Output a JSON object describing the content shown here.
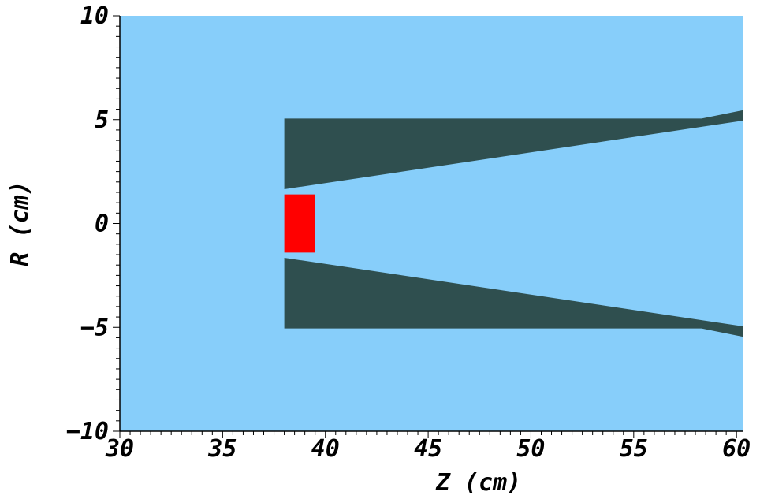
{
  "chart_data": {
    "type": "area",
    "title": "",
    "xlabel": "Z  (cm)",
    "ylabel": "R  (cm)",
    "xlim": [
      30,
      60.3
    ],
    "ylim": [
      -10,
      10
    ],
    "x_ticks": [
      30,
      35,
      40,
      45,
      50,
      55,
      60
    ],
    "y_ticks": [
      -10,
      -5,
      0,
      5,
      10
    ],
    "x_tick_labels": [
      "30",
      "35",
      "40",
      "45",
      "50",
      "55",
      "60"
    ],
    "y_tick_labels": [
      "−10",
      "−5",
      "0",
      "5",
      "10"
    ],
    "grid": false,
    "legend": "none",
    "colors": {
      "background": "#87cefa",
      "shield": "#2f4f4f",
      "target": "#ff0000",
      "axis": "#000000"
    },
    "regions": [
      {
        "name": "upper-shield",
        "color": "shield",
        "points": [
          [
            38,
            5.05
          ],
          [
            58.3,
            5.05
          ],
          [
            60.3,
            5.45
          ],
          [
            60.3,
            4.95
          ],
          [
            38,
            1.65
          ]
        ]
      },
      {
        "name": "lower-shield",
        "color": "shield",
        "points": [
          [
            38,
            -5.05
          ],
          [
            58.3,
            -5.05
          ],
          [
            60.3,
            -5.45
          ],
          [
            60.3,
            -4.95
          ],
          [
            38,
            -1.65
          ]
        ]
      },
      {
        "name": "target",
        "color": "target",
        "points": [
          [
            38,
            1.4
          ],
          [
            39.5,
            1.4
          ],
          [
            39.5,
            -1.4
          ],
          [
            38,
            -1.4
          ]
        ]
      }
    ]
  }
}
